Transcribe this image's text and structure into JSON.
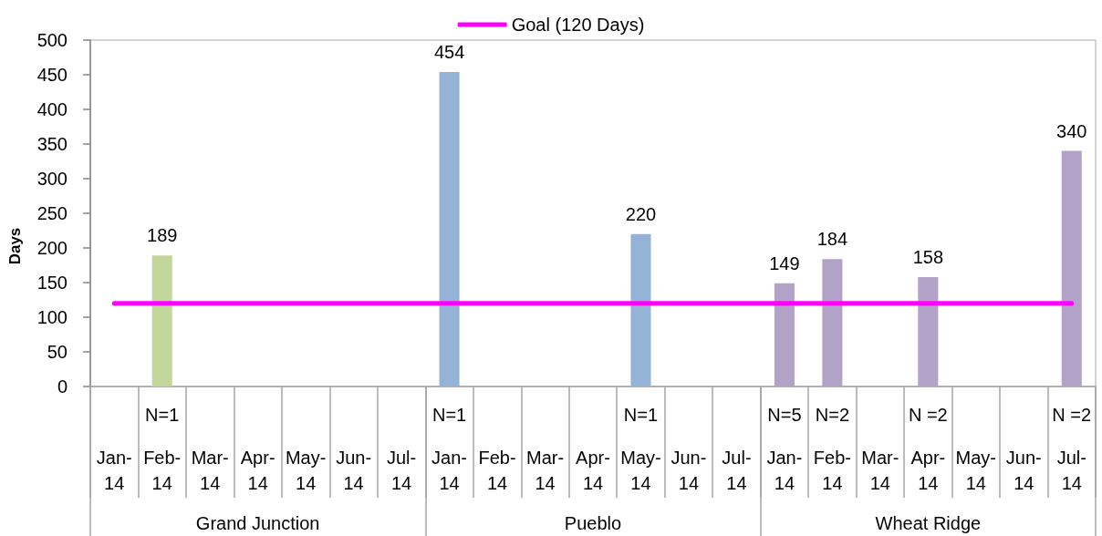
{
  "chart_data": {
    "type": "bar",
    "categories": [
      "Jan-14",
      "N=1\nFeb-14",
      "Mar-14",
      "Apr-14",
      "May-14",
      "Jun-14",
      "Jul-14",
      "N=1\nJan-14",
      "Feb-14",
      "Mar-14",
      "Apr-14",
      "N=1\nMay-14",
      "Jun-14",
      "Jul-14",
      "N=5\nJan-14",
      "N=2\nFeb-14",
      "Mar-14",
      "N =2\nApr-14",
      "May-14",
      "Jun-14",
      "N =2\nJul-14"
    ],
    "annotations": [
      "Grand Junction",
      "Pueblo",
      "Wheat Ridge"
    ],
    "ylabel": "Days",
    "ylim": [
      0,
      500
    ],
    "yticks": [
      0,
      50,
      100,
      150,
      200,
      250,
      300,
      350,
      400,
      450,
      500
    ],
    "grid": false,
    "legend": "top",
    "series": [
      {
        "colors": [
          "#c3d69b",
          "#c3d69b",
          "#c3d69b",
          "#c3d69b",
          "#c3d69b",
          "#c3d69b",
          "#c3d69b",
          "#95b3d7",
          "#95b3d7",
          "#95b3d7",
          "#95b3d7",
          "#95b3d7",
          "#95b3d7",
          "#95b3d7",
          "#b3a2c7",
          "#b3a2c7",
          "#b3a2c7",
          "#b3a2c7",
          "#b3a2c7",
          "#b3a2c7",
          "#b3a2c7"
        ],
        "values": [
          null,
          189,
          null,
          null,
          null,
          null,
          null,
          454,
          null,
          null,
          null,
          220,
          null,
          null,
          149,
          184,
          null,
          158,
          null,
          null,
          340
        ],
        "value_labels": [
          null,
          "189",
          null,
          null,
          null,
          null,
          null,
          "454",
          null,
          null,
          null,
          "220",
          null,
          null,
          "149",
          "184",
          null,
          "158",
          null,
          null,
          "340"
        ]
      },
      {
        "name": "Goal (120 Days)",
        "type": "line",
        "color": "#ff00ff",
        "values": [
          120,
          120,
          120,
          120,
          120,
          120,
          120,
          120,
          120,
          120,
          120,
          120,
          120,
          120,
          120,
          120,
          120,
          120,
          120,
          120,
          120
        ]
      }
    ]
  }
}
